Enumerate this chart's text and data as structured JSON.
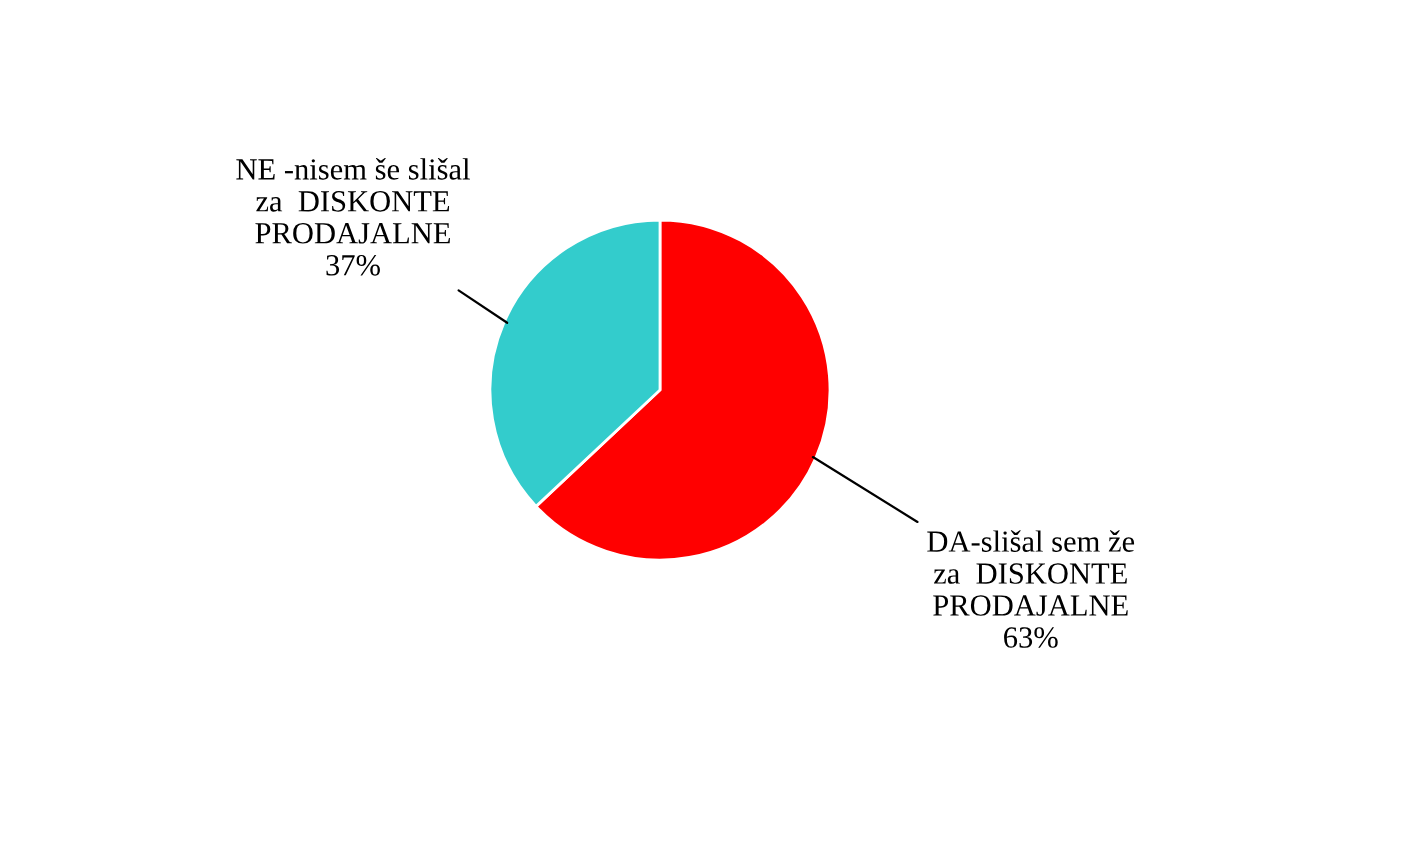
{
  "chart_data": {
    "type": "pie",
    "categories": [
      "DA-slišal sem že\nza  DISKONTE\nPRODAJALNE",
      "NE -nisem še slišal\nza  DISKONTE\nPRODAJALNE"
    ],
    "values": [
      63,
      37
    ],
    "value_labels": [
      "63%",
      "37%"
    ],
    "colors": [
      "#ff0000",
      "#33cccc"
    ],
    "legend": false
  }
}
